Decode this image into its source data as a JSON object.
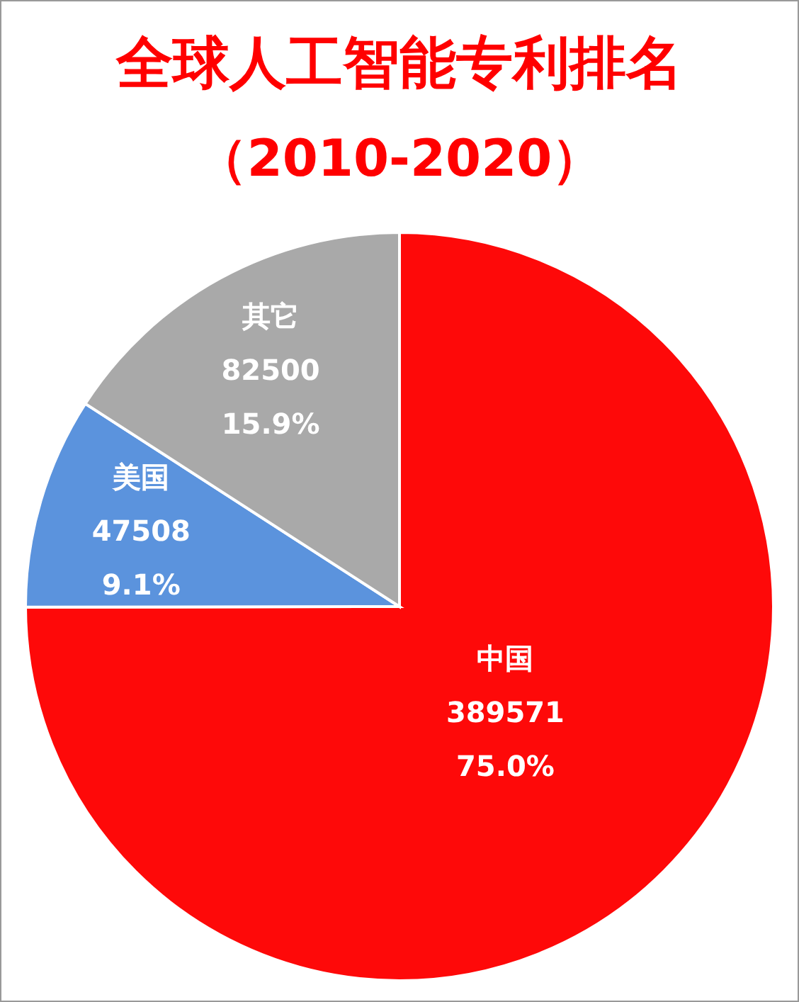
{
  "chart_data": {
    "type": "pie",
    "title": "全球人工智能专利排名",
    "subtitle": "（2010-2020）",
    "categories": [
      "中国",
      "美国",
      "其它"
    ],
    "values": [
      389571,
      47508,
      82500
    ],
    "value_labels": [
      "389571\n75.0%",
      "47508\n9.1%",
      "82500\n15.9%"
    ],
    "colors": [
      "#fe0909",
      "#5b93dd",
      "#a9a9a9"
    ]
  }
}
